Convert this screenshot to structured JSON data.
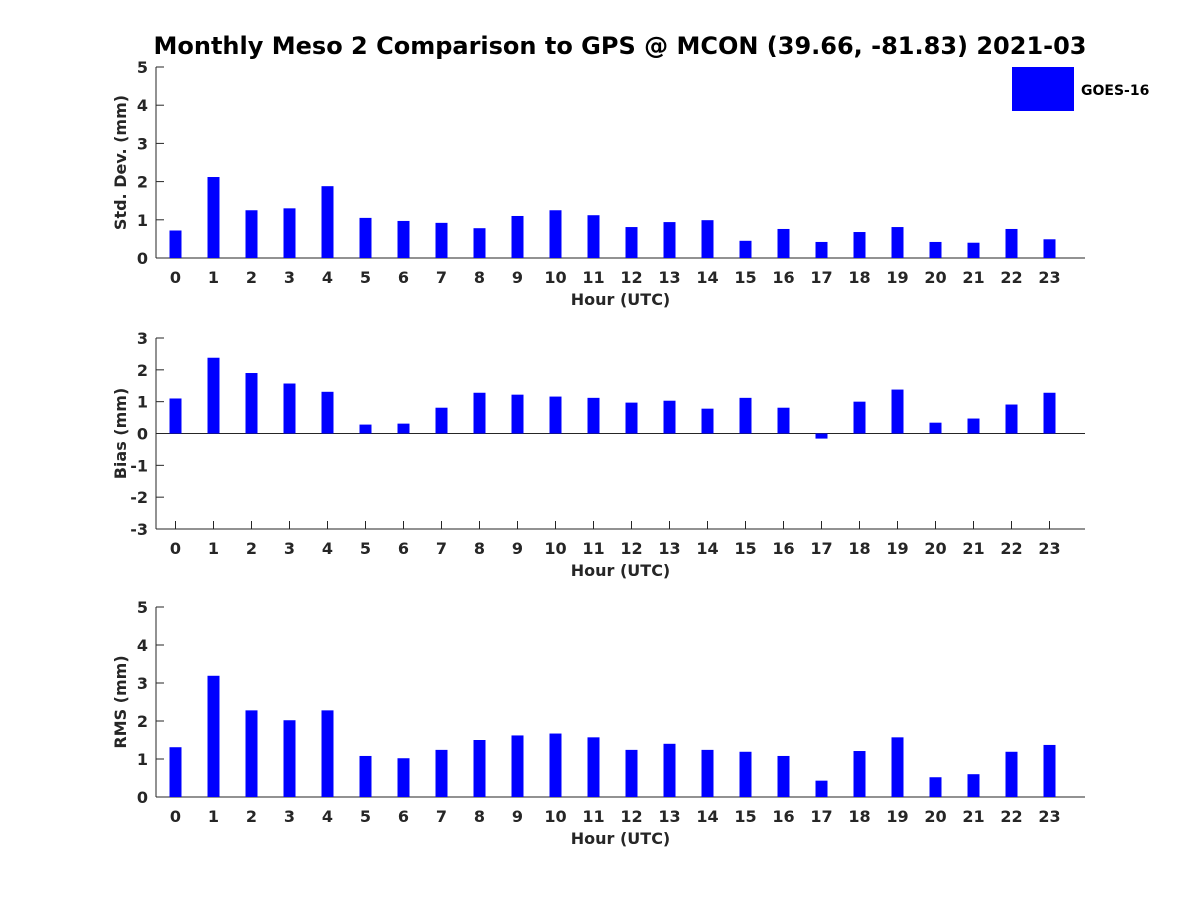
{
  "title": "Monthly Meso 2 Comparison to GPS @ MCON (39.66, -81.83) 2021-03",
  "legend": {
    "label": "GOES-16",
    "color": "#0000ff",
    "placement": "top-right"
  },
  "chart_data": [
    {
      "type": "bar",
      "xlabel": "Hour (UTC)",
      "ylabel": "Std. Dev. (mm)",
      "ylim": [
        0,
        5
      ],
      "yticks": [
        "0",
        "1",
        "2",
        "3",
        "4",
        "5"
      ],
      "categories": [
        "0",
        "1",
        "2",
        "3",
        "4",
        "5",
        "6",
        "7",
        "8",
        "9",
        "10",
        "11",
        "12",
        "13",
        "14",
        "15",
        "16",
        "17",
        "18",
        "19",
        "20",
        "21",
        "22",
        "23"
      ],
      "series": [
        {
          "name": "GOES-16",
          "color": "#0000ff",
          "values": [
            0.72,
            2.12,
            1.25,
            1.3,
            1.88,
            1.05,
            0.97,
            0.92,
            0.78,
            1.1,
            1.25,
            1.12,
            0.81,
            0.94,
            0.99,
            0.45,
            0.76,
            0.42,
            0.68,
            0.81,
            0.42,
            0.4,
            0.76,
            0.49
          ]
        }
      ]
    },
    {
      "type": "bar",
      "xlabel": "Hour (UTC)",
      "ylabel": "Bias (mm)",
      "ylim": [
        -3,
        3
      ],
      "yticks": [
        "-3",
        "-2",
        "-1",
        "0",
        "1",
        "2",
        "3"
      ],
      "categories": [
        "0",
        "1",
        "2",
        "3",
        "4",
        "5",
        "6",
        "7",
        "8",
        "9",
        "10",
        "11",
        "12",
        "13",
        "14",
        "15",
        "16",
        "17",
        "18",
        "19",
        "20",
        "21",
        "22",
        "23"
      ],
      "series": [
        {
          "name": "GOES-16",
          "color": "#0000ff",
          "values": [
            1.1,
            2.38,
            1.9,
            1.57,
            1.31,
            0.28,
            0.31,
            0.81,
            1.28,
            1.22,
            1.16,
            1.12,
            0.97,
            1.03,
            0.78,
            1.12,
            0.81,
            -0.16,
            1.0,
            1.38,
            0.34,
            0.47,
            0.91,
            1.28
          ]
        }
      ]
    },
    {
      "type": "bar",
      "xlabel": "Hour (UTC)",
      "ylabel": "RMS (mm)",
      "ylim": [
        0,
        5
      ],
      "yticks": [
        "0",
        "1",
        "2",
        "3",
        "4",
        "5"
      ],
      "categories": [
        "0",
        "1",
        "2",
        "3",
        "4",
        "5",
        "6",
        "7",
        "8",
        "9",
        "10",
        "11",
        "12",
        "13",
        "14",
        "15",
        "16",
        "17",
        "18",
        "19",
        "20",
        "21",
        "22",
        "23"
      ],
      "series": [
        {
          "name": "GOES-16",
          "color": "#0000ff",
          "values": [
            1.31,
            3.19,
            2.28,
            2.02,
            2.28,
            1.08,
            1.02,
            1.24,
            1.5,
            1.62,
            1.67,
            1.57,
            1.24,
            1.4,
            1.24,
            1.19,
            1.08,
            0.43,
            1.21,
            1.57,
            0.52,
            0.6,
            1.19,
            1.37
          ]
        }
      ]
    }
  ]
}
